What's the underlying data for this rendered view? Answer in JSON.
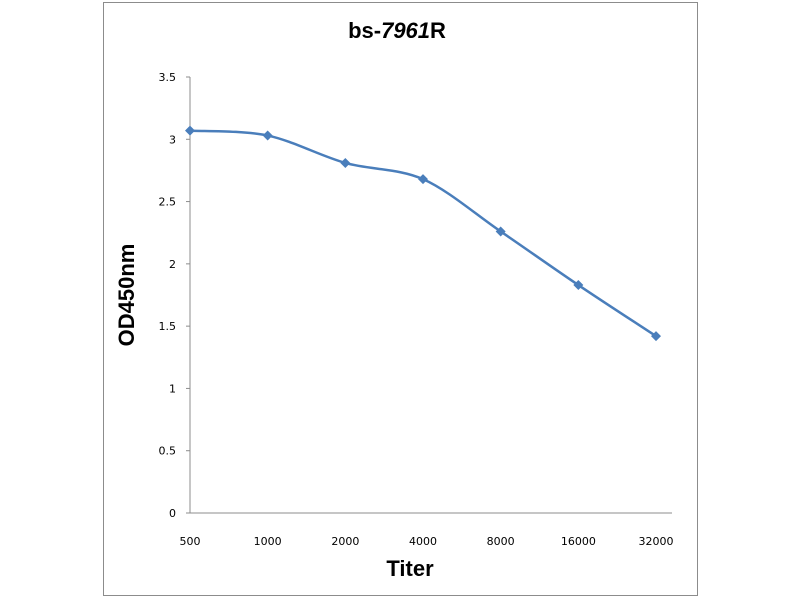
{
  "chart_data": {
    "type": "line",
    "title": {
      "prefix": "bs-",
      "number": "7961",
      "suffix": "R"
    },
    "xlabel": "Titer",
    "ylabel": "OD450nm",
    "categories": [
      "500",
      "1000",
      "2000",
      "4000",
      "8000",
      "16000",
      "32000"
    ],
    "series": [
      {
        "values": [
          3.07,
          3.03,
          2.81,
          2.68,
          2.26,
          1.83,
          1.42
        ],
        "color": "#4a7ebb",
        "marker": "diamond"
      }
    ],
    "ylim": [
      0,
      3.5
    ],
    "yticks": [
      "0",
      "0.5",
      "1",
      "1.5",
      "2",
      "2.5",
      "3",
      "3.5"
    ],
    "grid": false,
    "legend": "none"
  }
}
